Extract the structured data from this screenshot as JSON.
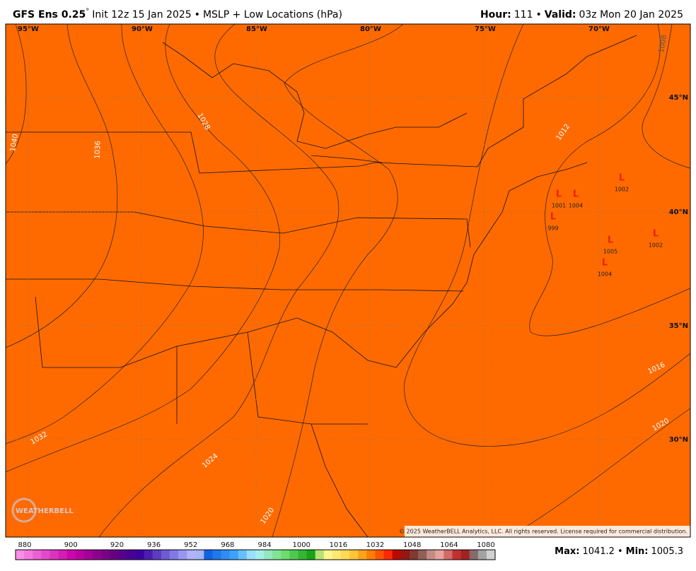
{
  "header": {
    "title_bold": "GFS Ens 0.25",
    "degree": "°",
    "title_rest": "Init 12z 15 Jan 2025",
    "separator": "•",
    "product": "MSLP + Low Locations (hPa)",
    "hour_label": "Hour:",
    "hour": "111",
    "valid_label": "Valid:",
    "valid": "03z Mon 20 Jan 2025"
  },
  "map": {
    "longitudes": [
      "95°W",
      "90°W",
      "85°W",
      "80°W",
      "75°W",
      "70°W"
    ],
    "latitudes": [
      "45°N",
      "40°N",
      "35°N",
      "30°N"
    ],
    "contour_labels": [
      "1040",
      "1036",
      "1032",
      "1028",
      "1024",
      "1020",
      "1016",
      "1020",
      "1012",
      "1008"
    ],
    "lows": [
      {
        "symbol": "L",
        "pressure": "1002"
      },
      {
        "symbol": "L",
        "pressure": "1001"
      },
      {
        "symbol": "L",
        "pressure": "1004"
      },
      {
        "symbol": "L",
        "pressure": "999"
      },
      {
        "symbol": "L",
        "pressure": "1005"
      },
      {
        "symbol": "L",
        "pressure": "1002"
      },
      {
        "symbol": "L",
        "pressure": "1004"
      }
    ],
    "logo": "WEATHERBELL",
    "copyright": "© 2025 WeatherBELL Analytics, LLC. All rights reserved. License required for commercial distribution."
  },
  "colorbar": {
    "ticks": [
      880,
      900,
      920,
      936,
      952,
      968,
      984,
      1000,
      1016,
      1032,
      1048,
      1064,
      1080
    ],
    "min": 880,
    "max": 1080
  },
  "stats": {
    "max_label": "Max:",
    "max": "1041.2",
    "separator": "•",
    "min_label": "Min:",
    "min": "1005.3"
  }
}
